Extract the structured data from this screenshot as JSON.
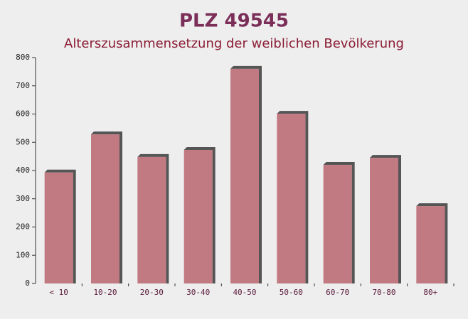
{
  "chart_data": {
    "type": "bar",
    "title": "PLZ 49545",
    "subtitle": "Alterszusammensetzung der weiblichen Bevölkerung",
    "categories": [
      "< 10",
      "10-20",
      "20-30",
      "30-40",
      "40-50",
      "50-60",
      "60-70",
      "70-80",
      "80+"
    ],
    "values": [
      393,
      528,
      448,
      473,
      760,
      601,
      420,
      445,
      274
    ],
    "color": "#c27a82",
    "ylim": [
      0,
      800
    ],
    "yticks": [
      0,
      100,
      200,
      300,
      400,
      500,
      600,
      700,
      800
    ]
  }
}
